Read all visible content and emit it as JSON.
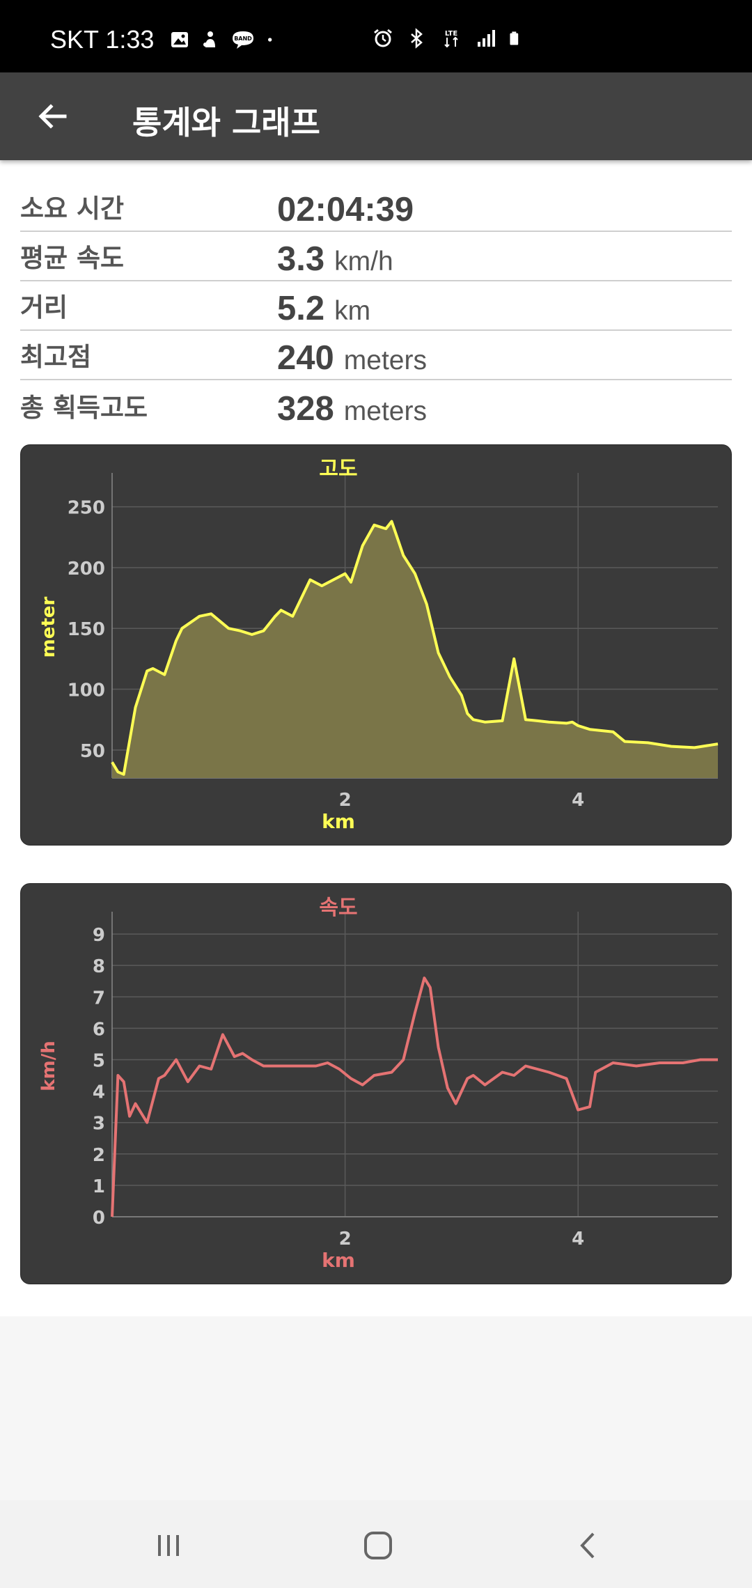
{
  "status_bar": {
    "carrier_time": "SKT 1:33",
    "icons_left": [
      "gallery-icon",
      "person-icon",
      "band-icon",
      "dot-icon"
    ],
    "band_label": "BAND",
    "icons_right": [
      "alarm-icon",
      "bluetooth-icon",
      "lte-icon",
      "signal-icon",
      "battery-icon"
    ],
    "lte_label": "LTE"
  },
  "app_bar": {
    "title": "통계와 그래프",
    "back_icon": "arrow-left-icon"
  },
  "stats": [
    {
      "label": "소요 시간",
      "value": "02:04:39",
      "unit": ""
    },
    {
      "label": "평균 속도",
      "value": "3.3",
      "unit": "km/h"
    },
    {
      "label": "거리",
      "value": "5.2",
      "unit": "km"
    },
    {
      "label": "최고점",
      "value": "240",
      "unit": "meters"
    },
    {
      "label": "총 획득고도",
      "value": "328",
      "unit": "meters"
    }
  ],
  "colors": {
    "elevation": "#ffff55",
    "elevation_fill": "#7a7548",
    "speed": "#e57373",
    "card_bg": "#3a3a3a",
    "axis_text": "#cccccc"
  },
  "chart_data": [
    {
      "type": "area",
      "title": "고도",
      "xlabel": "km",
      "ylabel": "meter",
      "xlim": [
        0,
        5.2
      ],
      "ylim": [
        27,
        275
      ],
      "x_ticks": [
        2,
        4
      ],
      "y_ticks": [
        50,
        100,
        150,
        200,
        250
      ],
      "grid": true,
      "x": [
        0,
        0.05,
        0.1,
        0.2,
        0.3,
        0.35,
        0.45,
        0.55,
        0.6,
        0.75,
        0.85,
        1.0,
        1.1,
        1.2,
        1.3,
        1.4,
        1.45,
        1.55,
        1.7,
        1.8,
        1.9,
        2.0,
        2.05,
        2.15,
        2.25,
        2.35,
        2.4,
        2.5,
        2.6,
        2.7,
        2.75,
        2.8,
        2.9,
        3.0,
        3.05,
        3.1,
        3.2,
        3.35,
        3.45,
        3.55,
        3.65,
        3.75,
        3.9,
        3.95,
        4.0,
        4.1,
        4.3,
        4.4,
        4.6,
        4.8,
        5.0,
        5.2
      ],
      "y": [
        40,
        32,
        30,
        85,
        115,
        117,
        112,
        140,
        150,
        160,
        162,
        150,
        148,
        145,
        148,
        160,
        165,
        160,
        190,
        185,
        190,
        195,
        188,
        218,
        235,
        232,
        238,
        210,
        195,
        170,
        150,
        130,
        110,
        95,
        80,
        75,
        73,
        74,
        125,
        75,
        74,
        73,
        72,
        73,
        70,
        67,
        65,
        57,
        56,
        53,
        52,
        55
      ]
    },
    {
      "type": "line",
      "title": "속도",
      "xlabel": "km",
      "ylabel": "km/h",
      "xlim": [
        0,
        5.2
      ],
      "ylim": [
        0,
        9.6
      ],
      "x_ticks": [
        2,
        4
      ],
      "y_ticks": [
        0,
        1,
        2,
        3,
        4,
        5,
        6,
        7,
        8,
        9
      ],
      "grid": true,
      "x": [
        0,
        0.05,
        0.1,
        0.15,
        0.2,
        0.3,
        0.4,
        0.45,
        0.55,
        0.65,
        0.75,
        0.85,
        0.95,
        1.05,
        1.12,
        1.2,
        1.3,
        1.45,
        1.6,
        1.75,
        1.85,
        1.95,
        2.05,
        2.15,
        2.25,
        2.4,
        2.5,
        2.6,
        2.68,
        2.73,
        2.8,
        2.88,
        2.95,
        3.05,
        3.1,
        3.2,
        3.35,
        3.45,
        3.55,
        3.65,
        3.75,
        3.9,
        4.0,
        4.1,
        4.15,
        4.3,
        4.5,
        4.7,
        4.9,
        5.05,
        5.2
      ],
      "y": [
        0,
        4.5,
        4.3,
        3.2,
        3.6,
        3.0,
        4.4,
        4.5,
        5.0,
        4.3,
        4.8,
        4.7,
        5.8,
        5.1,
        5.2,
        5.0,
        4.8,
        4.8,
        4.8,
        4.8,
        4.9,
        4.7,
        4.4,
        4.2,
        4.5,
        4.6,
        5.0,
        6.5,
        7.6,
        7.3,
        5.4,
        4.1,
        3.6,
        4.4,
        4.5,
        4.2,
        4.6,
        4.5,
        4.8,
        4.7,
        4.6,
        4.4,
        3.4,
        3.5,
        4.6,
        4.9,
        4.8,
        4.9,
        4.9,
        5.0,
        5.0
      ]
    }
  ],
  "nav_bar": {
    "buttons": [
      "recent-apps-icon",
      "home-icon",
      "back-icon"
    ]
  }
}
